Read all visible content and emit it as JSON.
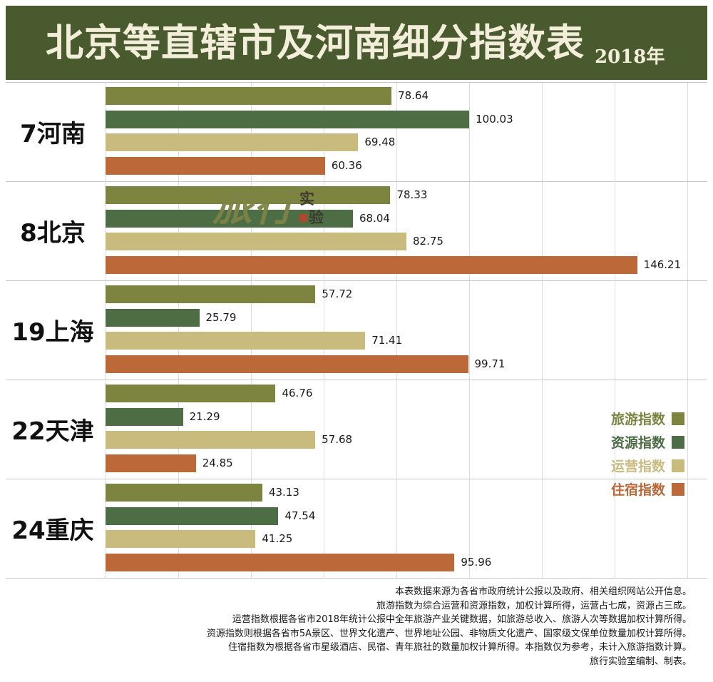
{
  "header": {
    "title": "北京等直辖市及河南细分指数表",
    "year": "2018年"
  },
  "watermark": {
    "main": "旅行",
    "sub_top": "实",
    "sub_bottom": "验"
  },
  "chart_data": {
    "type": "bar",
    "orientation": "horizontal",
    "title": "北京等直辖市及河南细分指数表 2018年",
    "categories": [
      "7河南",
      "8北京",
      "19上海",
      "22天津",
      "24重庆"
    ],
    "series": [
      {
        "name": "旅游指数",
        "color": "#7c8440",
        "values": [
          78.64,
          78.33,
          57.72,
          46.76,
          43.13
        ]
      },
      {
        "name": "资源指数",
        "color": "#4d6e44",
        "values": [
          100.03,
          68.04,
          25.79,
          21.29,
          47.54
        ]
      },
      {
        "name": "运营指数",
        "color": "#c9bb7e",
        "values": [
          69.48,
          82.75,
          71.41,
          57.68,
          41.25
        ]
      },
      {
        "name": "住宿指数",
        "color": "#bd6838",
        "values": [
          60.36,
          146.21,
          99.71,
          24.85,
          95.96
        ]
      }
    ],
    "xlim": [
      0,
      160
    ],
    "gridline_step": 20,
    "grid": true,
    "legend_position": "right",
    "value_labels": true
  },
  "footer": {
    "lines": [
      "本表数据来源为各省市政府统计公报以及政府、相关组织网站公开信息。",
      "旅游指数为综合运营和资源指数，加权计算所得，运营占七成，资源占三成。",
      "运营指数根据各省市2018年统计公报中全年旅游产业关键数据，如旅游总收入、旅游人次等数据加权计算所得。",
      "资源指数则根据各省市5A景区、世界文化遗产、世界地址公园、非物质文化遗产、国家级文保单位数量加权计算所得。",
      "住宿指数为根据各省市星级酒店、民宿、青年旅社的数量加权计算所得。本指数仅为参考，未计入旅游指数计算。",
      "旅行实验室编制、制表。"
    ]
  }
}
